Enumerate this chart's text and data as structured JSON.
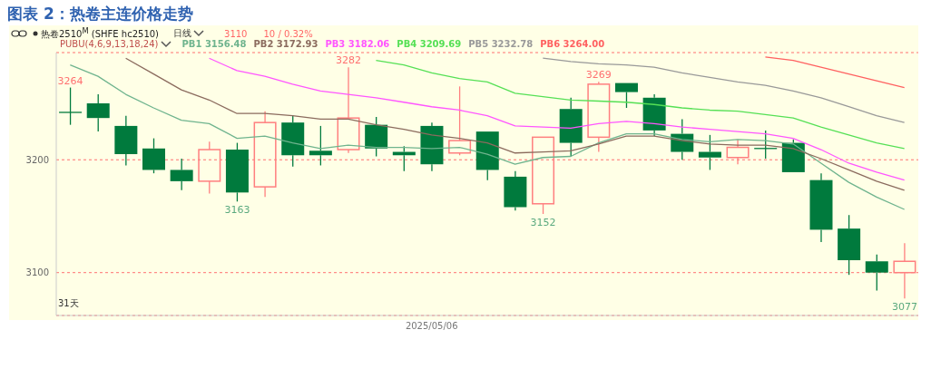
{
  "chart_data": {
    "type": "candlestick",
    "title": "图表 2：热卷主连价格走势",
    "subtitle": "热卷2510$^{M}$ (SHFE hc2510)",
    "categories": [
      null,
      null,
      null,
      null,
      null,
      null,
      null,
      null,
      null,
      null,
      null,
      null,
      null,
      "2025/05/06",
      null,
      null,
      null,
      null,
      null,
      null,
      null,
      null,
      null,
      null,
      null,
      null,
      null,
      null,
      null,
      null,
      null
    ],
    "ohlc": [
      [
        3242,
        3264,
        3231,
        3242
      ],
      [
        3250,
        3258,
        3225,
        3237
      ],
      [
        3230,
        3239,
        3195,
        3205
      ],
      [
        3210,
        3219,
        3188,
        3191
      ],
      [
        3191,
        3201,
        3173,
        3181
      ],
      [
        3181,
        3216,
        3170,
        3209
      ],
      [
        3209,
        3215,
        3163,
        3171
      ],
      [
        3176,
        3243,
        3167,
        3233
      ],
      [
        3233,
        3239,
        3194,
        3204
      ],
      [
        3208,
        3230,
        3195,
        3204
      ],
      [
        3209,
        3282,
        3206,
        3237
      ],
      [
        3231,
        3238,
        3203,
        3210
      ],
      [
        3207,
        3212,
        3190,
        3204
      ],
      [
        3230,
        3233,
        3190,
        3196
      ],
      [
        3206,
        3265,
        3204,
        3217
      ],
      [
        3225,
        3225,
        3182,
        3191
      ],
      [
        3185,
        3190,
        3155,
        3158
      ],
      [
        3161,
        3220,
        3152,
        3220
      ],
      [
        3245,
        3255,
        3203,
        3215
      ],
      [
        3220,
        3269,
        3207,
        3267
      ],
      [
        3268,
        3268,
        3246,
        3260
      ],
      [
        3255,
        3258,
        3221,
        3226
      ],
      [
        3223,
        3236,
        3200,
        3207
      ],
      [
        3207,
        3222,
        3191,
        3202
      ],
      [
        3202,
        3218,
        3196,
        3211
      ],
      [
        3210,
        3226,
        3201,
        3210
      ],
      [
        3215,
        3218,
        3189,
        3189
      ],
      [
        3182,
        3188,
        3127,
        3138
      ],
      [
        3139,
        3151,
        3098,
        3111
      ],
      [
        3110,
        3116,
        3084,
        3100
      ],
      [
        3100,
        3126,
        3077,
        3110
      ]
    ],
    "colors": [
      "#007a3d",
      "#007a3d",
      "#007a3d",
      "#007a3d",
      "#007a3d",
      "#ff7f7f",
      "#007a3d",
      "#ff7f7f",
      "#007a3d",
      "#007a3d",
      "#ff7f7f",
      "#007a3d",
      "#007a3d",
      "#007a3d",
      "#ff7f7f",
      "#007a3d",
      "#007a3d",
      "#ff7f7f",
      "#007a3d",
      "#ff7f7f",
      "#007a3d",
      "#007a3d",
      "#007a3d",
      "#007a3d",
      "#ff7f7f",
      "#007a3d",
      "#007a3d",
      "#007a3d",
      "#007a3d",
      "#007a3d",
      "#ff7f7f"
    ],
    "series": [
      {
        "name": "PB1 3156.48",
        "type": "line",
        "color": "#6fb48e",
        "values": [
          3284,
          3274,
          3258,
          3246,
          3235,
          3232,
          3219,
          3221,
          3215,
          3210,
          3213,
          3211,
          3211,
          3210,
          3211,
          3205,
          3196,
          3202,
          3203,
          3215,
          3223,
          3223,
          3218,
          3216,
          3218,
          3217,
          3214,
          3197,
          3180,
          3167,
          3156
        ]
      },
      {
        "name": "PB2 3172.93",
        "type": "line",
        "color": "#8b6b5e",
        "values": [
          null,
          null,
          3290,
          3276,
          3262,
          3253,
          3241,
          3241,
          3239,
          3236,
          3236,
          3231,
          3227,
          3222,
          3219,
          3215,
          3206,
          3207,
          3208,
          3214,
          3221,
          3221,
          3217,
          3214,
          3213,
          3213,
          3210,
          3201,
          3191,
          3181,
          3173
        ]
      },
      {
        "name": "PB3 3182.06",
        "type": "line",
        "color": "#ff55ff",
        "values": [
          null,
          null,
          null,
          null,
          null,
          3290,
          3279,
          3274,
          3267,
          3261,
          3258,
          3255,
          3251,
          3247,
          3244,
          3239,
          3230,
          3229,
          3228,
          3232,
          3234,
          3232,
          3229,
          3227,
          3225,
          3223,
          3219,
          3209,
          3197,
          3189,
          3182
        ]
      },
      {
        "name": "PB4 3209.69",
        "type": "line",
        "color": "#55e055",
        "values": [
          null,
          null,
          null,
          null,
          null,
          null,
          null,
          null,
          null,
          null,
          null,
          3288,
          3284,
          3277,
          3272,
          3269,
          3259,
          3256,
          3253,
          3252,
          3251,
          3249,
          3246,
          3244,
          3243,
          3240,
          3237,
          3229,
          3222,
          3215,
          3210
        ]
      },
      {
        "name": "PB5 3232.78",
        "type": "line",
        "color": "#999999",
        "values": [
          null,
          null,
          null,
          null,
          null,
          null,
          null,
          null,
          null,
          null,
          null,
          null,
          null,
          null,
          null,
          null,
          null,
          3290,
          3287,
          3285,
          3284,
          3282,
          3277,
          3273,
          3269,
          3266,
          3261,
          3255,
          3247,
          3239,
          3233
        ]
      },
      {
        "name": "PB6 3264.00",
        "type": "line",
        "color": "#ff6060",
        "values": [
          null,
          null,
          null,
          null,
          null,
          null,
          null,
          null,
          null,
          null,
          null,
          null,
          null,
          null,
          null,
          null,
          null,
          null,
          null,
          null,
          null,
          null,
          null,
          null,
          null,
          3291,
          3288,
          3282,
          3276,
          3270,
          3264
        ]
      }
    ],
    "ylim": [
      3062,
      3295
    ],
    "yticks": [
      3100,
      3200
    ],
    "grid": "y",
    "legend": "top left",
    "annotations": [
      "日线",
      "3110",
      "10 / 0.32%",
      "PUBU(4,6,9,13,18,24)",
      "31天",
      {
        "text": "3264",
        "y": 3264
      },
      {
        "text": "3163",
        "y": 3163
      },
      {
        "text": "3282",
        "y": 3282
      },
      {
        "text": "3152",
        "y": 3152
      },
      {
        "text": "3269",
        "y": 3269
      },
      {
        "text": "3077",
        "y": 3077
      }
    ]
  }
}
